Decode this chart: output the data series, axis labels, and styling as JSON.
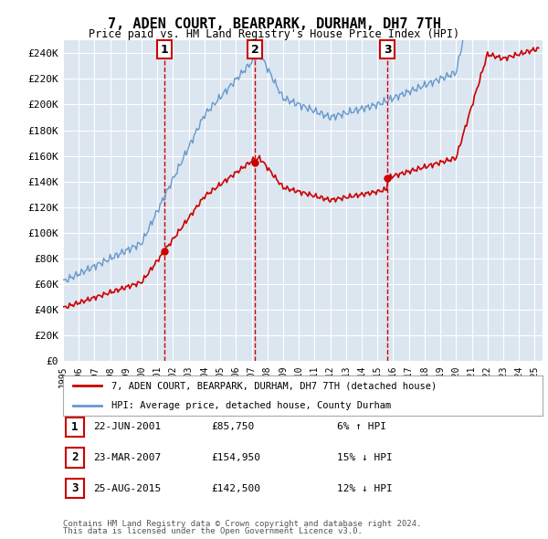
{
  "title": "7, ADEN COURT, BEARPARK, DURHAM, DH7 7TH",
  "subtitle": "Price paid vs. HM Land Registry's House Price Index (HPI)",
  "ylim": [
    0,
    250000
  ],
  "yticks": [
    0,
    20000,
    40000,
    60000,
    80000,
    100000,
    120000,
    140000,
    160000,
    180000,
    200000,
    220000,
    240000
  ],
  "ytick_labels": [
    "£0",
    "£20K",
    "£40K",
    "£60K",
    "£80K",
    "£100K",
    "£120K",
    "£140K",
    "£160K",
    "£180K",
    "£200K",
    "£220K",
    "£240K"
  ],
  "bg_color": "#dce6f1",
  "grid_color": "#ffffff",
  "red_line_color": "#cc0000",
  "blue_line_color": "#6699cc",
  "annotation_box_edge": "#cc0000",
  "legend_label_red": "7, ADEN COURT, BEARPARK, DURHAM, DH7 7TH (detached house)",
  "legend_label_blue": "HPI: Average price, detached house, County Durham",
  "transactions": [
    {
      "num": 1,
      "date": "22-JUN-2001",
      "price": 85750,
      "pct": "6%",
      "dir": "↑",
      "x_year": 2001.47
    },
    {
      "num": 2,
      "date": "23-MAR-2007",
      "price": 154950,
      "pct": "15%",
      "dir": "↓",
      "x_year": 2007.22
    },
    {
      "num": 3,
      "date": "25-AUG-2015",
      "price": 142500,
      "pct": "12%",
      "dir": "↓",
      "x_year": 2015.64
    }
  ],
  "footer_line1": "Contains HM Land Registry data © Crown copyright and database right 2024.",
  "footer_line2": "This data is licensed under the Open Government Licence v3.0.",
  "xticks": [
    1995,
    1996,
    1997,
    1998,
    1999,
    2000,
    2001,
    2002,
    2003,
    2004,
    2005,
    2006,
    2007,
    2008,
    2009,
    2010,
    2011,
    2012,
    2013,
    2014,
    2015,
    2016,
    2017,
    2018,
    2019,
    2020,
    2021,
    2022,
    2023,
    2024,
    2025
  ],
  "xlim": [
    1995,
    2025.5
  ]
}
